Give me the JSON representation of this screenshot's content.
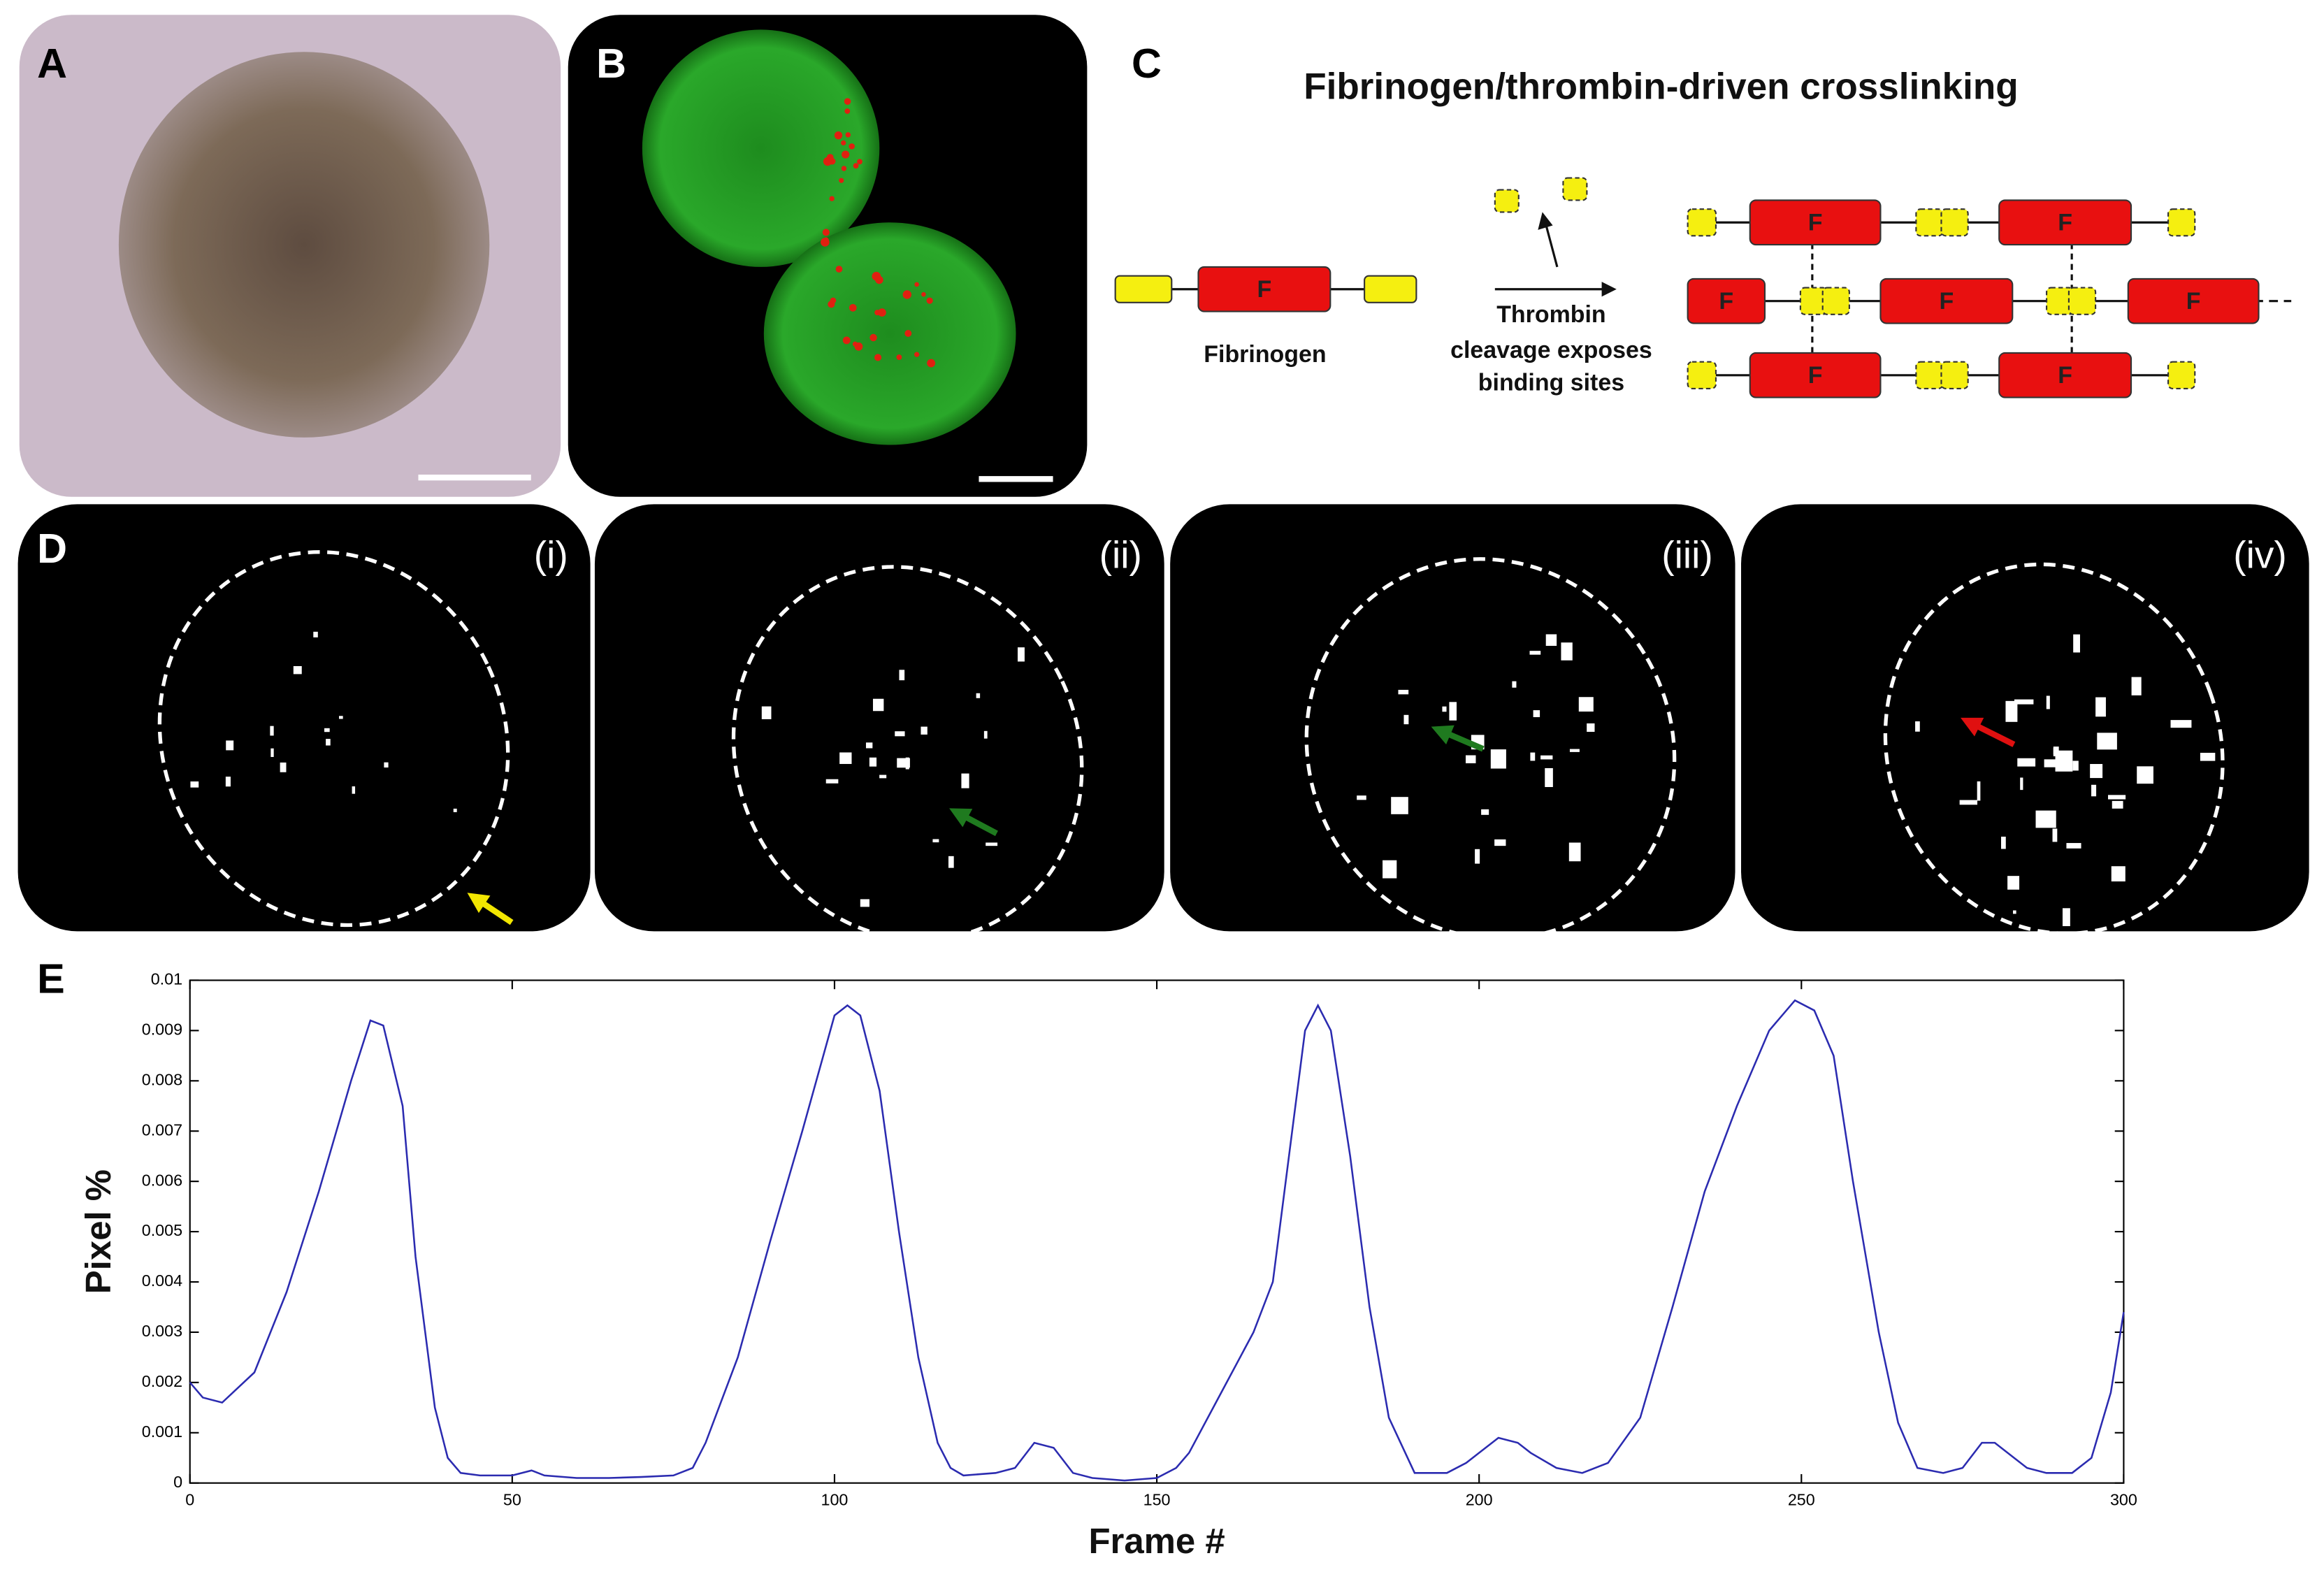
{
  "panels": {
    "a": {
      "label": "A"
    },
    "b": {
      "label": "B"
    },
    "c": {
      "label": "C",
      "title": "Fibrinogen/thrombin-driven crosslinking",
      "fibrinogen_label": "Fibrinogen",
      "unit_letter": "F",
      "arrow_label": [
        "Thrombin",
        "cleavage exposes",
        "binding sites"
      ]
    },
    "d": {
      "label": "D",
      "frames": [
        "(i)",
        "(ii)",
        "(iii)",
        "(iv)"
      ]
    },
    "e": {
      "label": "E"
    }
  },
  "chart_data": {
    "type": "line",
    "xlabel": "Frame #",
    "ylabel": "Pixel %",
    "x": [
      0,
      2,
      5,
      10,
      15,
      20,
      25,
      28,
      30,
      33,
      35,
      38,
      40,
      42,
      45,
      50,
      53,
      55,
      60,
      65,
      70,
      75,
      78,
      80,
      85,
      90,
      95,
      100,
      102,
      104,
      107,
      110,
      113,
      116,
      118,
      120,
      125,
      128,
      131,
      134,
      137,
      140,
      145,
      150,
      153,
      155,
      160,
      165,
      168,
      170,
      173,
      175,
      177,
      180,
      183,
      186,
      190,
      195,
      198,
      200,
      203,
      206,
      208,
      212,
      216,
      220,
      225,
      230,
      235,
      240,
      245,
      249,
      252,
      255,
      258,
      262,
      265,
      268,
      272,
      275,
      278,
      280,
      283,
      285,
      288,
      292,
      295,
      298,
      300
    ],
    "series": [
      {
        "color": "#2b2bb0",
        "values": [
          0.002,
          0.0017,
          0.0016,
          0.0022,
          0.0038,
          0.0058,
          0.008,
          0.0092,
          0.0091,
          0.0075,
          0.0045,
          0.0015,
          0.0005,
          0.0002,
          0.00015,
          0.00015,
          0.00025,
          0.00015,
          0.0001,
          0.0001,
          0.00012,
          0.00015,
          0.0003,
          0.0008,
          0.0025,
          0.0048,
          0.007,
          0.0093,
          0.0095,
          0.0093,
          0.0078,
          0.005,
          0.0025,
          0.0008,
          0.0003,
          0.00015,
          0.0002,
          0.0003,
          0.0008,
          0.0007,
          0.0002,
          0.0001,
          5e-05,
          0.0001,
          0.0003,
          0.0006,
          0.0018,
          0.003,
          0.004,
          0.006,
          0.009,
          0.0095,
          0.009,
          0.0065,
          0.0035,
          0.0013,
          0.0002,
          0.0002,
          0.0004,
          0.0006,
          0.0009,
          0.0008,
          0.0006,
          0.0003,
          0.0002,
          0.0004,
          0.0013,
          0.0035,
          0.0058,
          0.0075,
          0.009,
          0.0096,
          0.0094,
          0.0085,
          0.006,
          0.003,
          0.0012,
          0.0003,
          0.0002,
          0.0003,
          0.0008,
          0.0008,
          0.0005,
          0.0003,
          0.0002,
          0.0002,
          0.0005,
          0.0018,
          0.0034
        ]
      }
    ],
    "xlim": [
      0,
      300
    ],
    "ylim": [
      0,
      0.01
    ],
    "xticks": [
      0,
      50,
      100,
      150,
      200,
      250,
      300
    ],
    "yticks": [
      0,
      0.001,
      0.002,
      0.003,
      0.004,
      0.005,
      0.006,
      0.007,
      0.008,
      0.009,
      0.01
    ]
  }
}
